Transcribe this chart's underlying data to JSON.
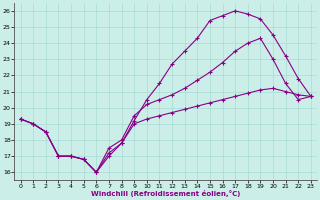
{
  "xlabel": "Windchill (Refroidissement éolien,°C)",
  "bg_color": "#cceee8",
  "line_color": "#880088",
  "xlim": [
    -0.5,
    23.5
  ],
  "ylim": [
    15.5,
    26.5
  ],
  "xticks": [
    0,
    1,
    2,
    3,
    4,
    5,
    6,
    7,
    8,
    9,
    10,
    11,
    12,
    13,
    14,
    15,
    16,
    17,
    18,
    19,
    20,
    21,
    22,
    23
  ],
  "yticks": [
    16,
    17,
    18,
    19,
    20,
    21,
    22,
    23,
    24,
    25,
    26
  ],
  "line1_x": [
    0,
    1,
    2,
    3,
    4,
    5,
    6,
    7,
    8,
    9,
    10,
    11,
    12,
    13,
    14,
    15,
    16,
    17,
    18,
    19,
    20,
    21,
    22,
    23
  ],
  "line1_y": [
    19.3,
    19.0,
    18.5,
    17.0,
    17.0,
    16.8,
    16.0,
    17.0,
    17.8,
    19.2,
    20.5,
    21.5,
    22.7,
    23.5,
    24.3,
    25.4,
    25.7,
    26.0,
    25.8,
    25.5,
    24.5,
    23.2,
    21.8,
    20.7
  ],
  "line2_x": [
    0,
    1,
    2,
    3,
    4,
    5,
    6,
    7,
    8,
    9,
    10,
    11,
    12,
    13,
    14,
    15,
    16,
    17,
    18,
    19,
    20,
    21,
    22,
    23
  ],
  "line2_y": [
    19.3,
    19.0,
    18.5,
    17.0,
    17.0,
    16.8,
    16.0,
    17.5,
    18.0,
    19.5,
    20.2,
    20.5,
    20.8,
    21.2,
    21.7,
    22.2,
    22.8,
    23.5,
    24.0,
    24.3,
    23.0,
    21.5,
    20.5,
    20.7
  ],
  "line3_x": [
    0,
    1,
    2,
    3,
    4,
    5,
    6,
    7,
    8,
    9,
    10,
    11,
    12,
    13,
    14,
    15,
    16,
    17,
    18,
    19,
    20,
    21,
    22,
    23
  ],
  "line3_y": [
    19.3,
    19.0,
    18.5,
    17.0,
    17.0,
    16.8,
    16.0,
    17.2,
    17.8,
    19.0,
    19.3,
    19.5,
    19.7,
    19.9,
    20.1,
    20.3,
    20.5,
    20.7,
    20.9,
    21.1,
    21.2,
    21.0,
    20.8,
    20.7
  ]
}
